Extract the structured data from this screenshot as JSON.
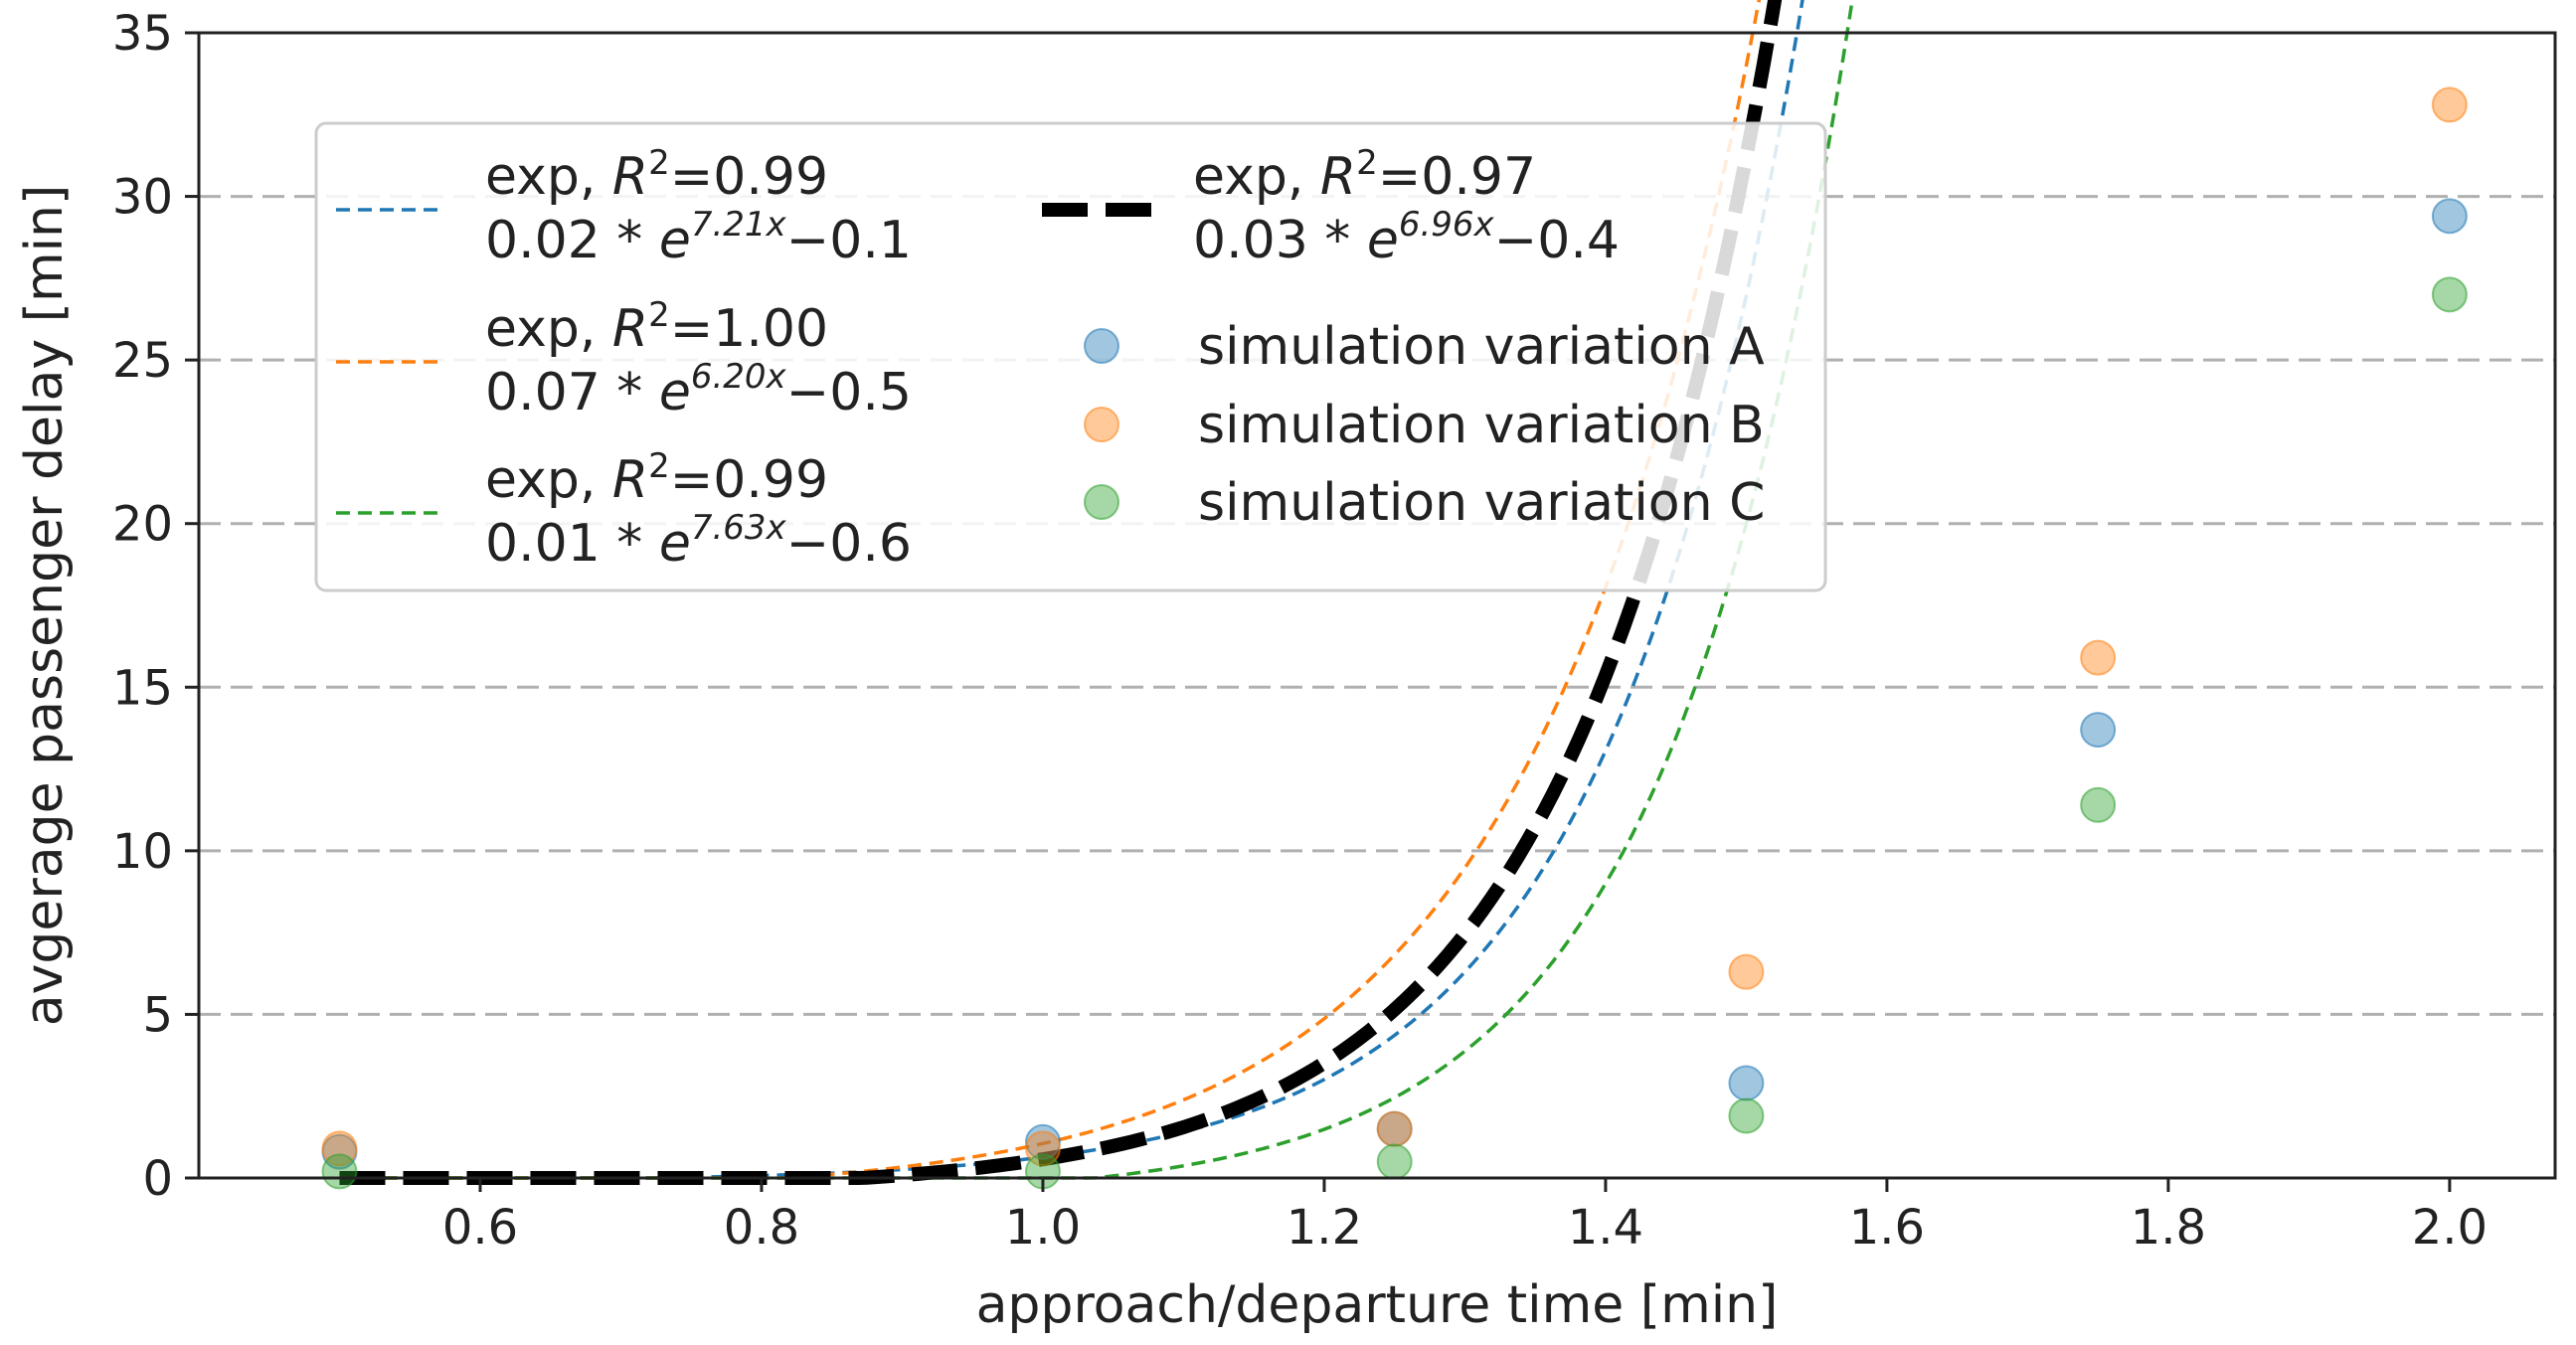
{
  "chart_data": {
    "type": "scatter",
    "title": "",
    "xlabel": "approach/departure time [min]",
    "ylabel": "avgerage passenger delay [min]",
    "xlim": [
      0.4,
      2.075
    ],
    "ylim": [
      0,
      35
    ],
    "xticks": [
      0.6,
      0.8,
      1.0,
      1.2,
      1.4,
      1.6,
      1.8,
      2.0
    ],
    "xtick_labels": [
      "0.6",
      "0.8",
      "1.0",
      "1.2",
      "1.4",
      "1.6",
      "1.8",
      "2.0"
    ],
    "yticks": [
      0,
      5,
      10,
      15,
      20,
      25,
      30,
      35
    ],
    "ytick_labels": [
      "0",
      "5",
      "10",
      "15",
      "20",
      "25",
      "30",
      "35"
    ],
    "grid": "horizontal dashed",
    "legend_position": "top-left",
    "colors": {
      "a": "#1f77b4",
      "b": "#ff7f0e",
      "c": "#2ca02c",
      "combined": "#000000",
      "grid": "#b0b0b0",
      "axis": "#222222"
    },
    "points": [
      {
        "name": "simulation variation A",
        "color_key": "a",
        "x": [
          0.5,
          1.0,
          1.25,
          1.5,
          1.75,
          2.0
        ],
        "y": [
          0.8,
          1.1,
          1.5,
          2.9,
          13.7,
          29.4
        ]
      },
      {
        "name": "simulation variation B",
        "color_key": "b",
        "x": [
          0.5,
          1.0,
          1.25,
          1.5,
          1.75,
          2.0
        ],
        "y": [
          0.9,
          0.9,
          1.5,
          6.3,
          15.9,
          32.8
        ]
      },
      {
        "name": "simulation variation C",
        "color_key": "c",
        "x": [
          0.5,
          1.0,
          1.25,
          1.5,
          1.75,
          2.0
        ],
        "y": [
          0.2,
          0.2,
          0.5,
          1.9,
          11.4,
          27.0
        ]
      }
    ],
    "fits": [
      {
        "color_key": "a",
        "label_line1_prefix": "exp, ",
        "label_r": "R",
        "label_r_sup": "2",
        "label_r_value": "=0.99",
        "label_coef": "0.02 * ",
        "label_e": "e",
        "label_exp": "7.21x",
        "label_offset": "−0.1",
        "a": 0.02,
        "b": 7.21,
        "c": -0.1
      },
      {
        "color_key": "b",
        "label_line1_prefix": "exp, ",
        "label_r": "R",
        "label_r_sup": "2",
        "label_r_value": "=1.00",
        "label_coef": "0.07 * ",
        "label_e": "e",
        "label_exp": "6.20x",
        "label_offset": "−0.5",
        "a": 0.07,
        "b": 6.2,
        "c": -0.5
      },
      {
        "color_key": "c",
        "label_line1_prefix": "exp, ",
        "label_r": "R",
        "label_r_sup": "2",
        "label_r_value": "=0.99",
        "label_coef": "0.01 * ",
        "label_e": "e",
        "label_exp": "7.63x",
        "label_offset": "−0.6",
        "a": 0.01,
        "b": 7.63,
        "c": -0.6
      },
      {
        "color_key": "combined",
        "label_line1_prefix": "exp, ",
        "label_r": "R",
        "label_r_sup": "2",
        "label_r_value": "=0.97",
        "label_coef": "0.03 * ",
        "label_e": "e",
        "label_exp": "6.96x",
        "label_offset": "−0.4",
        "a": 0.03,
        "b": 6.96,
        "c": -0.4
      }
    ]
  }
}
